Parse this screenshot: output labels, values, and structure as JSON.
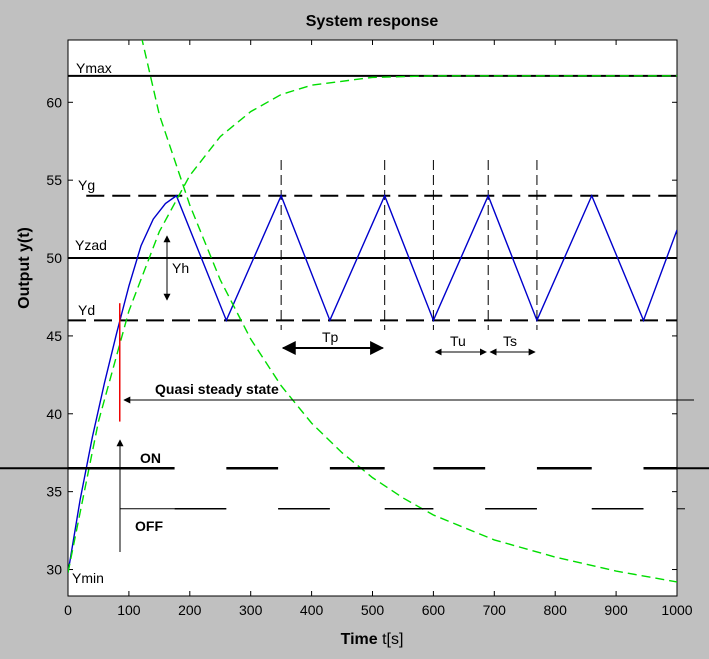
{
  "chart_data": {
    "type": "line",
    "title": "System response",
    "xlabel_bold": "Time",
    "xlabel_rest": " t[s]",
    "ylabel": "Output  y(t)",
    "xlim": [
      0,
      1000
    ],
    "ylim": [
      28.3,
      64
    ],
    "xticks": [
      0,
      100,
      200,
      300,
      400,
      500,
      600,
      700,
      800,
      900,
      1000
    ],
    "yticks": [
      30,
      35,
      40,
      45,
      50,
      55,
      60
    ],
    "grid": false,
    "levels": {
      "Ymax": 61.7,
      "Yg": 54,
      "Yzad": 50,
      "Yd": 46,
      "Ymin": 29.8
    },
    "series": [
      {
        "color": "#0000cc",
        "x": [
          0,
          20,
          40,
          60,
          80,
          100,
          120,
          140,
          160,
          178,
          260,
          350,
          430,
          520,
          600,
          690,
          770,
          860,
          945,
          1000
        ],
        "y": [
          29.8,
          34.5,
          38.5,
          42,
          45.2,
          48.2,
          50.8,
          52.5,
          53.5,
          54,
          46,
          54,
          46,
          54,
          46,
          54,
          46,
          54,
          46,
          51.8
        ]
      },
      {
        "color": "#00dd00",
        "dashed": true,
        "x": [
          0,
          50,
          100,
          150,
          200,
          250,
          300,
          350,
          400,
          500,
          600,
          700,
          800,
          900,
          1000
        ],
        "y": [
          29.8,
          39.5,
          46.6,
          51.7,
          55.3,
          57.8,
          59.4,
          60.5,
          61.1,
          61.6,
          61.7,
          61.7,
          61.7,
          61.7,
          61.7
        ]
      },
      {
        "color": "#00dd00",
        "dashed": true,
        "x": [
          110,
          150,
          200,
          250,
          300,
          350,
          400,
          450,
          500,
          550,
          600,
          700,
          800,
          900,
          1000
        ],
        "y": [
          66,
          59.2,
          53.4,
          48.6,
          44.8,
          41.8,
          39.4,
          37.5,
          35.9,
          34.6,
          33.5,
          31.9,
          30.8,
          29.9,
          29.2
        ]
      }
    ],
    "on_segments": [
      [
        0,
        175
      ],
      [
        260,
        345
      ],
      [
        430,
        520
      ],
      [
        600,
        685
      ],
      [
        770,
        860
      ],
      [
        945,
        1000
      ]
    ],
    "off_segments": [
      [
        175,
        260
      ],
      [
        345,
        430
      ],
      [
        520,
        600
      ],
      [
        685,
        770
      ],
      [
        860,
        945
      ]
    ],
    "switch_levels": {
      "ON": 36.5,
      "OFF": 33.9
    },
    "switch_marker_x": 85,
    "switch_marker_y": [
      39.5,
      47.1
    ],
    "peak_markers": [
      350,
      520,
      600,
      690,
      770
    ],
    "annotations": {
      "ymax": "Ymax",
      "yg": "Yg",
      "yzad": "Yzad",
      "yd": "Yd",
      "ymin": "Ymin",
      "yh": "Yh",
      "tp": "Tp",
      "tu": "Tu",
      "ts": "Ts",
      "quasi": "Quasi steady state",
      "on": "ON",
      "off": "OFF"
    }
  }
}
